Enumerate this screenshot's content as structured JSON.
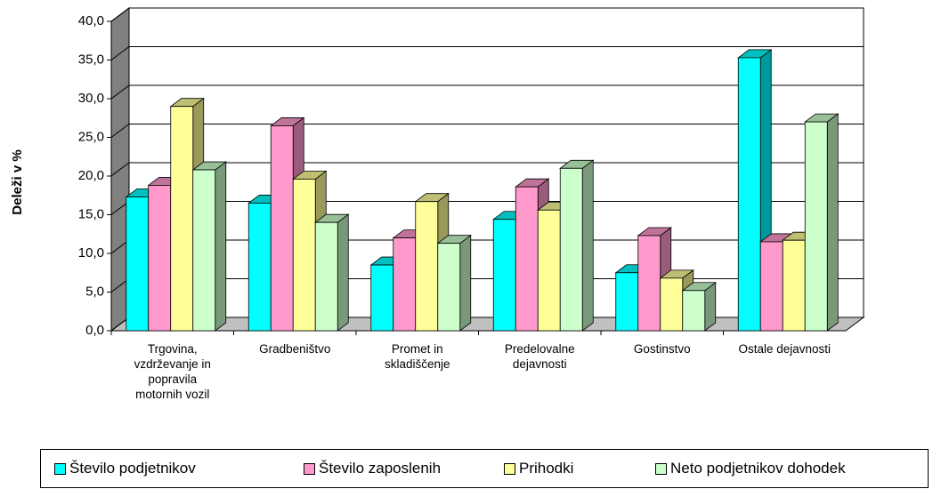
{
  "chart_data": {
    "type": "bar3d",
    "ylabel": "Deleži v %",
    "categories": [
      "Trgovina, vzdrževanje in popravila motornih vozil",
      "Gradbeništvo",
      "Promet in skladiščenje",
      "Predelovalne dejavnosti",
      "Gostinstvo",
      "Ostale dejavnosti"
    ],
    "series": [
      {
        "name": "Število podjetnikov",
        "color": "#00ffff",
        "values": [
          17.3,
          16.5,
          8.5,
          14.4,
          7.5,
          35.3
        ]
      },
      {
        "name": "Število zaposlenih",
        "color": "#ff99cc",
        "values": [
          18.8,
          26.5,
          12.0,
          18.6,
          12.3,
          11.5
        ]
      },
      {
        "name": "Prihodki",
        "color": "#ffff99",
        "values": [
          29.0,
          19.6,
          16.7,
          15.6,
          6.8,
          11.7
        ]
      },
      {
        "name": "Neto podjetnikov dohodek",
        "color": "#ccffcc",
        "values": [
          20.8,
          14.0,
          11.3,
          21.0,
          5.2,
          27.0
        ]
      }
    ],
    "ylim": [
      0,
      40
    ],
    "yticks": [
      {
        "value": 0,
        "label": "0,0"
      },
      {
        "value": 5,
        "label": "5,0"
      },
      {
        "value": 10,
        "label": "10,0"
      },
      {
        "value": 15,
        "label": "15,0"
      },
      {
        "value": 20,
        "label": "20,0"
      },
      {
        "value": 25,
        "label": "25,0"
      },
      {
        "value": 30,
        "label": "30,0"
      },
      {
        "value": 35,
        "label": "35,0"
      },
      {
        "value": 40,
        "label": "40,0"
      }
    ],
    "grid": true,
    "legend": "bottom"
  }
}
